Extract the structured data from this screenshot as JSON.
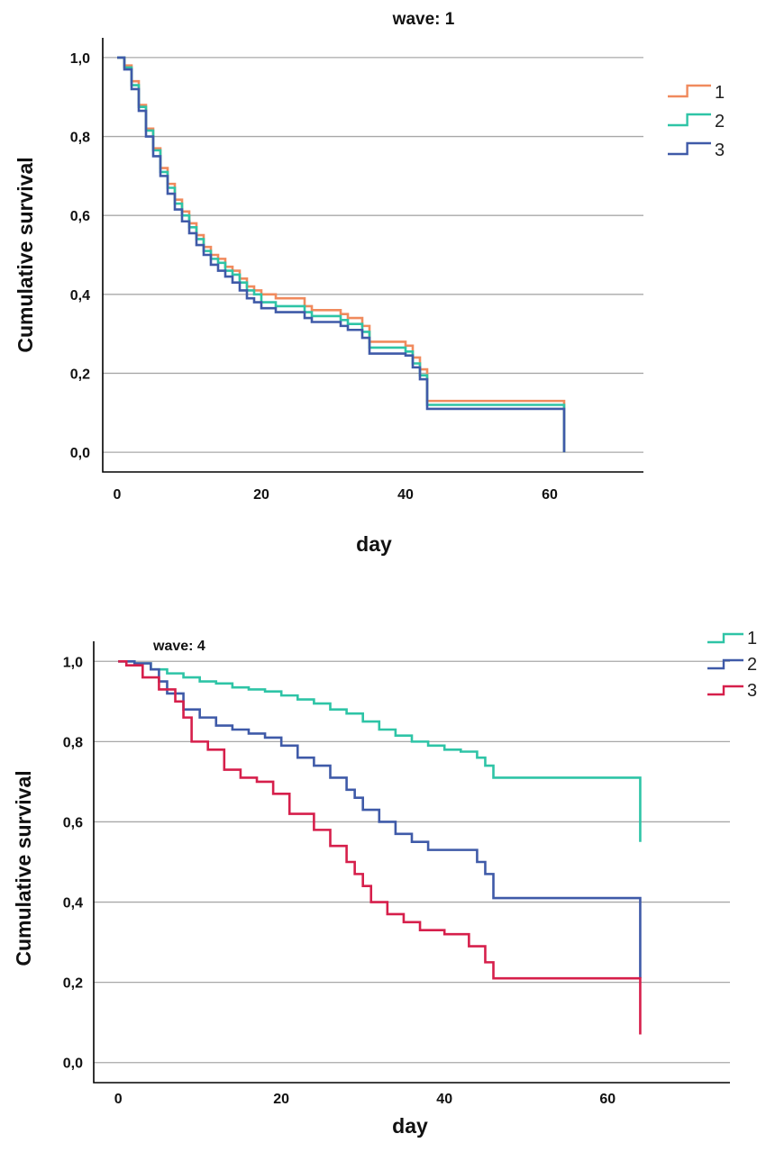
{
  "chart_data": [
    {
      "type": "line",
      "step": true,
      "title": "wave: 1",
      "xlabel": "day",
      "ylabel": "Cumulative survival",
      "xlim": [
        -2,
        73
      ],
      "ylim": [
        -0.05,
        1.05
      ],
      "xticks": [
        0,
        20,
        40,
        60
      ],
      "xtick_labels": [
        "0",
        "20",
        "40",
        "60"
      ],
      "yticks": [
        0.0,
        0.2,
        0.4,
        0.6,
        0.8,
        1.0
      ],
      "ytick_labels": [
        "0,0",
        "0,2",
        "0,4",
        "0,6",
        "0,8",
        "1,0"
      ],
      "grid": true,
      "legend_position": "right",
      "series": [
        {
          "name": "1",
          "color": "#F08A5D",
          "x": [
            0,
            1,
            2,
            3,
            4,
            5,
            6,
            7,
            8,
            9,
            10,
            11,
            12,
            13,
            14,
            15,
            16,
            17,
            18,
            19,
            20,
            22,
            26,
            27,
            31,
            32,
            34,
            35,
            40,
            41,
            42,
            43,
            62,
            62
          ],
          "y": [
            1.0,
            0.98,
            0.94,
            0.88,
            0.82,
            0.77,
            0.72,
            0.68,
            0.64,
            0.61,
            0.58,
            0.55,
            0.52,
            0.5,
            0.49,
            0.47,
            0.46,
            0.44,
            0.42,
            0.41,
            0.4,
            0.39,
            0.37,
            0.36,
            0.35,
            0.34,
            0.32,
            0.28,
            0.27,
            0.24,
            0.21,
            0.13,
            0.13,
            0.0
          ]
        },
        {
          "name": "2",
          "color": "#2EC4A6",
          "x": [
            0,
            1,
            2,
            3,
            4,
            5,
            6,
            7,
            8,
            9,
            10,
            11,
            12,
            13,
            14,
            15,
            16,
            17,
            18,
            19,
            20,
            22,
            26,
            27,
            31,
            32,
            34,
            35,
            40,
            41,
            42,
            43,
            62,
            62
          ],
          "y": [
            1.0,
            0.975,
            0.93,
            0.875,
            0.815,
            0.765,
            0.71,
            0.67,
            0.63,
            0.6,
            0.57,
            0.54,
            0.51,
            0.49,
            0.48,
            0.46,
            0.45,
            0.43,
            0.41,
            0.4,
            0.38,
            0.37,
            0.355,
            0.345,
            0.335,
            0.325,
            0.305,
            0.265,
            0.255,
            0.225,
            0.195,
            0.12,
            0.12,
            0.0
          ]
        },
        {
          "name": "3",
          "color": "#3F5AA8",
          "x": [
            0,
            1,
            2,
            3,
            4,
            5,
            6,
            7,
            8,
            9,
            10,
            11,
            12,
            13,
            14,
            15,
            16,
            17,
            18,
            19,
            20,
            22,
            26,
            27,
            31,
            32,
            34,
            35,
            40,
            41,
            42,
            43,
            62,
            62
          ],
          "y": [
            1.0,
            0.97,
            0.92,
            0.865,
            0.8,
            0.75,
            0.7,
            0.655,
            0.615,
            0.585,
            0.555,
            0.525,
            0.5,
            0.475,
            0.46,
            0.445,
            0.43,
            0.41,
            0.39,
            0.38,
            0.365,
            0.355,
            0.34,
            0.33,
            0.32,
            0.31,
            0.29,
            0.25,
            0.245,
            0.215,
            0.185,
            0.11,
            0.11,
            0.0
          ]
        }
      ]
    },
    {
      "type": "line",
      "step": true,
      "title": "wave: 4",
      "xlabel": "day",
      "ylabel": "Cumulative survival",
      "xlim": [
        -3,
        75
      ],
      "ylim": [
        -0.05,
        1.05
      ],
      "xticks": [
        0,
        20,
        40,
        60
      ],
      "xtick_labels": [
        "0",
        "20",
        "40",
        "60"
      ],
      "yticks": [
        0.0,
        0.2,
        0.4,
        0.6,
        0.8,
        1.0
      ],
      "ytick_labels": [
        "0,0",
        "0,2",
        "0,4",
        "0,6",
        "0,8",
        "1,0"
      ],
      "grid": true,
      "legend_position": "top-right",
      "series": [
        {
          "name": "1",
          "color": "#2EC4A6",
          "x": [
            0,
            2,
            4,
            6,
            8,
            10,
            12,
            14,
            16,
            18,
            20,
            22,
            24,
            26,
            28,
            30,
            32,
            34,
            36,
            38,
            40,
            42,
            44,
            45,
            46,
            64,
            64
          ],
          "y": [
            1.0,
            0.995,
            0.98,
            0.97,
            0.96,
            0.95,
            0.945,
            0.935,
            0.93,
            0.925,
            0.915,
            0.905,
            0.895,
            0.88,
            0.87,
            0.85,
            0.83,
            0.815,
            0.8,
            0.79,
            0.78,
            0.775,
            0.76,
            0.74,
            0.71,
            0.71,
            0.55
          ]
        },
        {
          "name": "2",
          "color": "#3F5AA8",
          "x": [
            0,
            2,
            4,
            5,
            6,
            8,
            10,
            12,
            14,
            16,
            18,
            20,
            22,
            24,
            26,
            28,
            29,
            30,
            32,
            34,
            36,
            38,
            40,
            44,
            45,
            46,
            64,
            64
          ],
          "y": [
            1.0,
            0.995,
            0.98,
            0.95,
            0.92,
            0.88,
            0.86,
            0.84,
            0.83,
            0.82,
            0.81,
            0.79,
            0.76,
            0.74,
            0.71,
            0.68,
            0.66,
            0.63,
            0.6,
            0.57,
            0.55,
            0.53,
            0.53,
            0.5,
            0.47,
            0.41,
            0.41,
            0.21
          ]
        },
        {
          "name": "3",
          "color": "#D61F4B",
          "x": [
            0,
            1,
            3,
            5,
            7,
            8,
            9,
            11,
            13,
            15,
            17,
            19,
            21,
            24,
            26,
            28,
            29,
            30,
            31,
            33,
            35,
            37,
            40,
            43,
            45,
            46,
            64,
            64
          ],
          "y": [
            1.0,
            0.99,
            0.96,
            0.93,
            0.9,
            0.86,
            0.8,
            0.78,
            0.73,
            0.71,
            0.7,
            0.67,
            0.62,
            0.58,
            0.54,
            0.5,
            0.47,
            0.44,
            0.4,
            0.37,
            0.35,
            0.33,
            0.32,
            0.29,
            0.25,
            0.21,
            0.21,
            0.07
          ]
        }
      ]
    }
  ]
}
